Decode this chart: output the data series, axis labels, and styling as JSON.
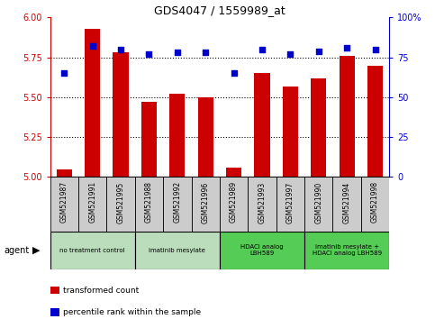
{
  "title": "GDS4047 / 1559989_at",
  "samples": [
    "GSM521987",
    "GSM521991",
    "GSM521995",
    "GSM521988",
    "GSM521992",
    "GSM521996",
    "GSM521989",
    "GSM521993",
    "GSM521997",
    "GSM521990",
    "GSM521994",
    "GSM521998"
  ],
  "bar_values": [
    5.05,
    5.93,
    5.78,
    5.47,
    5.52,
    5.5,
    5.06,
    5.65,
    5.57,
    5.62,
    5.76,
    5.7
  ],
  "dot_values": [
    65,
    82,
    80,
    77,
    78,
    78,
    65,
    80,
    77,
    79,
    81,
    80
  ],
  "bar_color": "#cc0000",
  "dot_color": "#0000cc",
  "ylim_left": [
    5.0,
    6.0
  ],
  "ylim_right": [
    0,
    100
  ],
  "yticks_left": [
    5.0,
    5.25,
    5.5,
    5.75,
    6.0
  ],
  "yticks_right": [
    0,
    25,
    50,
    75,
    100
  ],
  "grid_values": [
    5.25,
    5.5,
    5.75
  ],
  "agent_groups": [
    {
      "label": "no treatment control",
      "start": 0,
      "end": 3,
      "color": "#bbddbb"
    },
    {
      "label": "imatinib mesylate",
      "start": 3,
      "end": 6,
      "color": "#bbddbb"
    },
    {
      "label": "HDACi analog\nLBH589",
      "start": 6,
      "end": 9,
      "color": "#55cc55"
    },
    {
      "label": "imatinib mesylate +\nHDACi analog LBH589",
      "start": 9,
      "end": 12,
      "color": "#55cc55"
    }
  ],
  "legend_bar_label": "transformed count",
  "legend_dot_label": "percentile rank within the sample",
  "agent_label": "agent",
  "bar_width": 0.55,
  "tick_color_left": "#cc0000",
  "tick_color_right": "#0000cc",
  "sample_box_color": "#cccccc",
  "plot_bg": "#ffffff"
}
